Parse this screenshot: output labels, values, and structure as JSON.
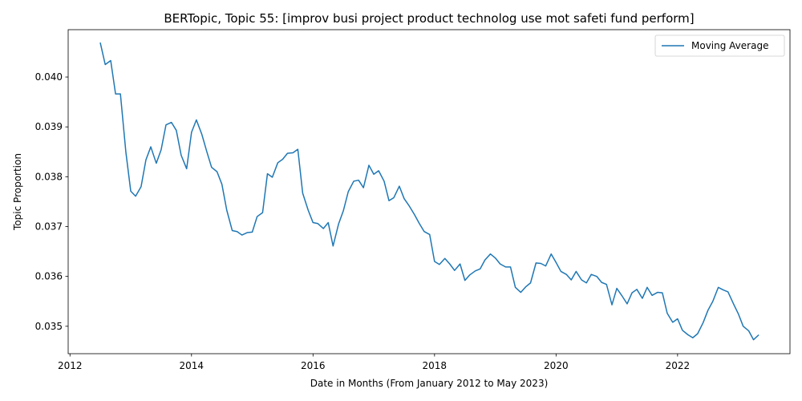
{
  "chart_data": {
    "type": "line",
    "title": "BERTopic, Topic 55: [improv busi project product technolog use mot safeti fund perform]",
    "xlabel": "Date in Months (From January 2012 to May 2023)",
    "ylabel": "Topic Proportion",
    "xlim": [
      2011.97,
      2023.85
    ],
    "ylim": [
      0.03445,
      0.04095
    ],
    "xticks": [
      2012,
      2014,
      2016,
      2018,
      2020,
      2022
    ],
    "xtick_labels": [
      "2012",
      "2014",
      "2016",
      "2018",
      "2020",
      "2022"
    ],
    "yticks": [
      0.035,
      0.036,
      0.037,
      0.038,
      0.039,
      0.04
    ],
    "ytick_labels": [
      "0.035",
      "0.036",
      "0.037",
      "0.038",
      "0.039",
      "0.040"
    ],
    "grid": false,
    "legend_position": "top-right",
    "color": "#1f77b4",
    "series": [
      {
        "name": "Moving Average",
        "x": [
          2012.5,
          2012.58,
          2012.67,
          2012.75,
          2012.83,
          2012.92,
          2013.0,
          2013.08,
          2013.17,
          2013.25,
          2013.33,
          2013.42,
          2013.5,
          2013.58,
          2013.67,
          2013.75,
          2013.83,
          2013.92,
          2014.0,
          2014.08,
          2014.17,
          2014.25,
          2014.33,
          2014.42,
          2014.5,
          2014.58,
          2014.67,
          2014.75,
          2014.83,
          2014.92,
          2015.0,
          2015.08,
          2015.17,
          2015.25,
          2015.33,
          2015.42,
          2015.5,
          2015.58,
          2015.67,
          2015.75,
          2015.83,
          2015.92,
          2016.0,
          2016.08,
          2016.17,
          2016.25,
          2016.33,
          2016.42,
          2016.5,
          2016.58,
          2016.67,
          2016.75,
          2016.83,
          2016.92,
          2017.0,
          2017.08,
          2017.17,
          2017.25,
          2017.33,
          2017.42,
          2017.5,
          2017.58,
          2017.67,
          2017.75,
          2017.83,
          2017.92,
          2018.0,
          2018.08,
          2018.17,
          2018.25,
          2018.33,
          2018.42,
          2018.5,
          2018.58,
          2018.67,
          2018.75,
          2018.83,
          2018.92,
          2019.0,
          2019.08,
          2019.17,
          2019.25,
          2019.33,
          2019.42,
          2019.5,
          2019.58,
          2019.67,
          2019.75,
          2019.83,
          2019.92,
          2020.0,
          2020.08,
          2020.17,
          2020.25,
          2020.33,
          2020.42,
          2020.5,
          2020.58,
          2020.67,
          2020.75,
          2020.83,
          2020.92,
          2021.0,
          2021.08,
          2021.17,
          2021.25,
          2021.33,
          2021.42,
          2021.5,
          2021.58,
          2021.67,
          2021.75,
          2021.83,
          2021.92,
          2022.0,
          2022.08,
          2022.17,
          2022.25,
          2022.33,
          2022.42,
          2022.5,
          2022.58,
          2022.67,
          2022.75,
          2022.83,
          2022.92,
          2023.0,
          2023.08,
          2023.17,
          2023.25,
          2023.33
        ],
        "y": [
          0.04068,
          0.04025,
          0.04033,
          0.03966,
          0.03966,
          0.03849,
          0.03771,
          0.03761,
          0.0378,
          0.03834,
          0.0386,
          0.03827,
          0.03854,
          0.03904,
          0.03909,
          0.03893,
          0.03843,
          0.03816,
          0.03889,
          0.03914,
          0.03885,
          0.03851,
          0.03819,
          0.0381,
          0.03785,
          0.03733,
          0.03692,
          0.0369,
          0.03683,
          0.03688,
          0.03689,
          0.0372,
          0.03728,
          0.03806,
          0.03799,
          0.03828,
          0.03835,
          0.03847,
          0.03848,
          0.03855,
          0.03767,
          0.03733,
          0.03708,
          0.03706,
          0.03696,
          0.03708,
          0.03661,
          0.03705,
          0.03732,
          0.0377,
          0.03791,
          0.03793,
          0.03778,
          0.03823,
          0.03805,
          0.03812,
          0.03791,
          0.03752,
          0.03758,
          0.03781,
          0.03756,
          0.03742,
          0.03724,
          0.03706,
          0.0369,
          0.03684,
          0.0363,
          0.03624,
          0.03636,
          0.03625,
          0.03612,
          0.03625,
          0.03592,
          0.03603,
          0.03611,
          0.03615,
          0.03633,
          0.03645,
          0.03637,
          0.03625,
          0.03619,
          0.03619,
          0.03578,
          0.03568,
          0.03579,
          0.03587,
          0.03627,
          0.03626,
          0.03621,
          0.03645,
          0.03628,
          0.0361,
          0.03604,
          0.03593,
          0.0361,
          0.03593,
          0.03587,
          0.03604,
          0.036,
          0.03588,
          0.03584,
          0.03543,
          0.03576,
          0.03562,
          0.03545,
          0.03567,
          0.03574,
          0.03556,
          0.03578,
          0.03562,
          0.03568,
          0.03567,
          0.03526,
          0.03508,
          0.03515,
          0.03492,
          0.03483,
          0.03477,
          0.03485,
          0.03507,
          0.03532,
          0.0355,
          0.03578,
          0.03573,
          0.03569,
          0.03545,
          0.03525,
          0.035,
          0.03491,
          0.03473,
          0.03482
        ]
      }
    ]
  }
}
